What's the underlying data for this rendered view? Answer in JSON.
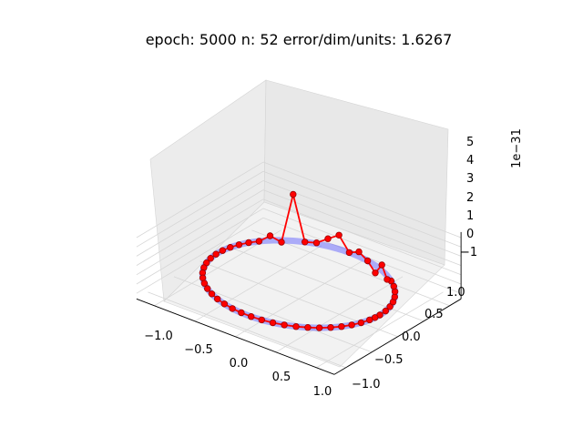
{
  "chart_data": {
    "type": "scatter",
    "projection": "3d",
    "title": "epoch: 5000 n: 52 error/dim/units: 1.6267",
    "x_ticks": [
      "−1.0",
      "−0.5",
      "0.0",
      "0.5",
      "1.0"
    ],
    "y_ticks": [
      "−1.0",
      "−0.5",
      "0.0",
      "0.5",
      "1.0"
    ],
    "z_ticks": [
      "−1",
      "0",
      "1",
      "2",
      "3",
      "4",
      "5"
    ],
    "z_offset_label": "1e−31",
    "xlim": [
      -1.0,
      1.0
    ],
    "ylim": [
      -1.0,
      1.0
    ],
    "zlim": [
      -1.6,
      5.6
    ],
    "z_scale": 1e-31,
    "grid": true,
    "colors": {
      "reference_circle": "#5555ff",
      "trajectory_line": "#ff0000",
      "trajectory_points": "#ff0000",
      "point_edge": "#990000"
    },
    "reference_circle": {
      "label": "",
      "radius": 1.0,
      "z": 0
    },
    "series": [
      {
        "values_note": "",
        "n_points": 52,
        "radius": 1.0,
        "angles_deg": [
          0,
          7,
          14,
          21,
          28,
          35,
          42,
          49,
          56,
          63,
          70,
          77,
          84,
          91,
          98,
          105,
          112,
          119,
          126,
          133,
          140,
          147,
          154,
          161,
          168,
          175,
          182,
          189,
          196,
          203,
          210,
          217,
          224,
          231,
          238,
          245,
          252,
          259,
          266,
          273,
          280,
          287,
          294,
          301,
          308,
          315,
          322,
          329,
          336,
          343,
          350,
          355
        ],
        "z": [
          0,
          0,
          0,
          0,
          0,
          0,
          0,
          0,
          -0.4,
          0.6,
          -0.8,
          0,
          0.5,
          0,
          1.5,
          0.8,
          0.1,
          0,
          5.0,
          -0.2,
          0.5,
          0,
          0,
          0,
          0,
          0,
          0,
          0,
          0,
          0,
          0,
          0,
          0,
          0,
          0,
          0,
          0,
          0,
          0,
          0,
          0,
          0,
          0,
          0,
          0,
          0,
          0,
          0,
          0,
          0,
          0,
          0
        ]
      }
    ]
  }
}
